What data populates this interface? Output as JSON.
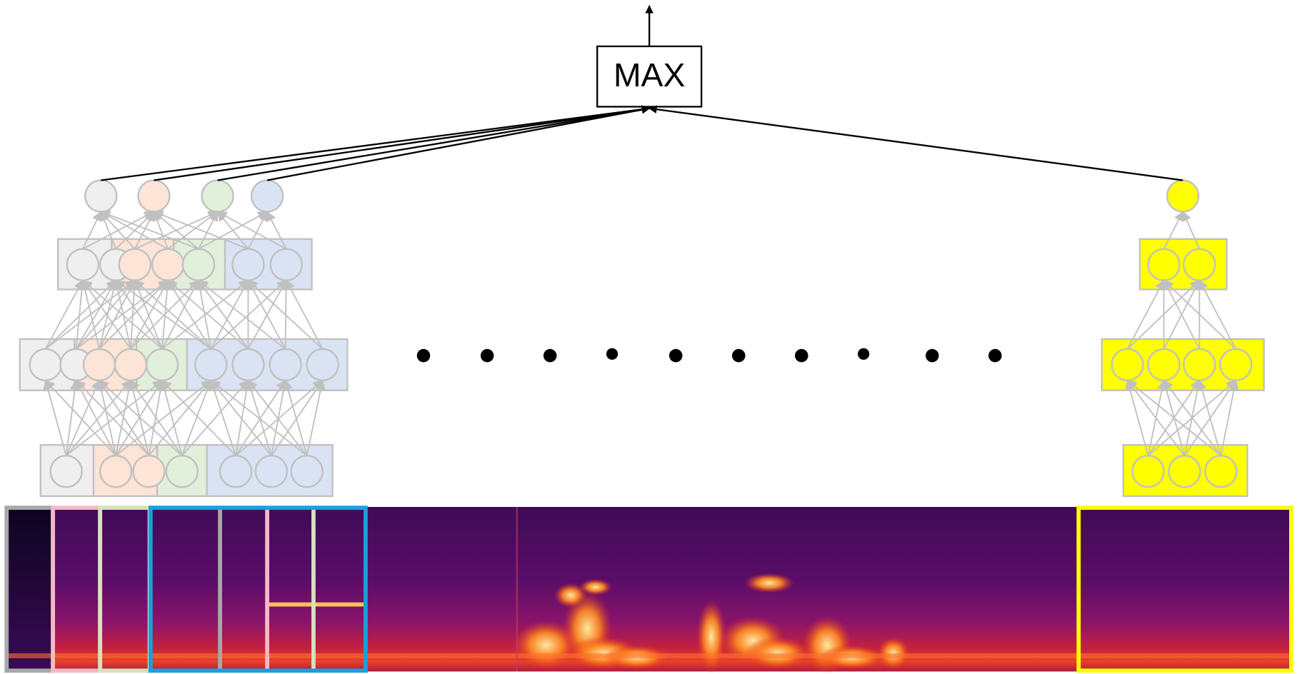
{
  "max_box": {
    "label": "MAX"
  }
}
